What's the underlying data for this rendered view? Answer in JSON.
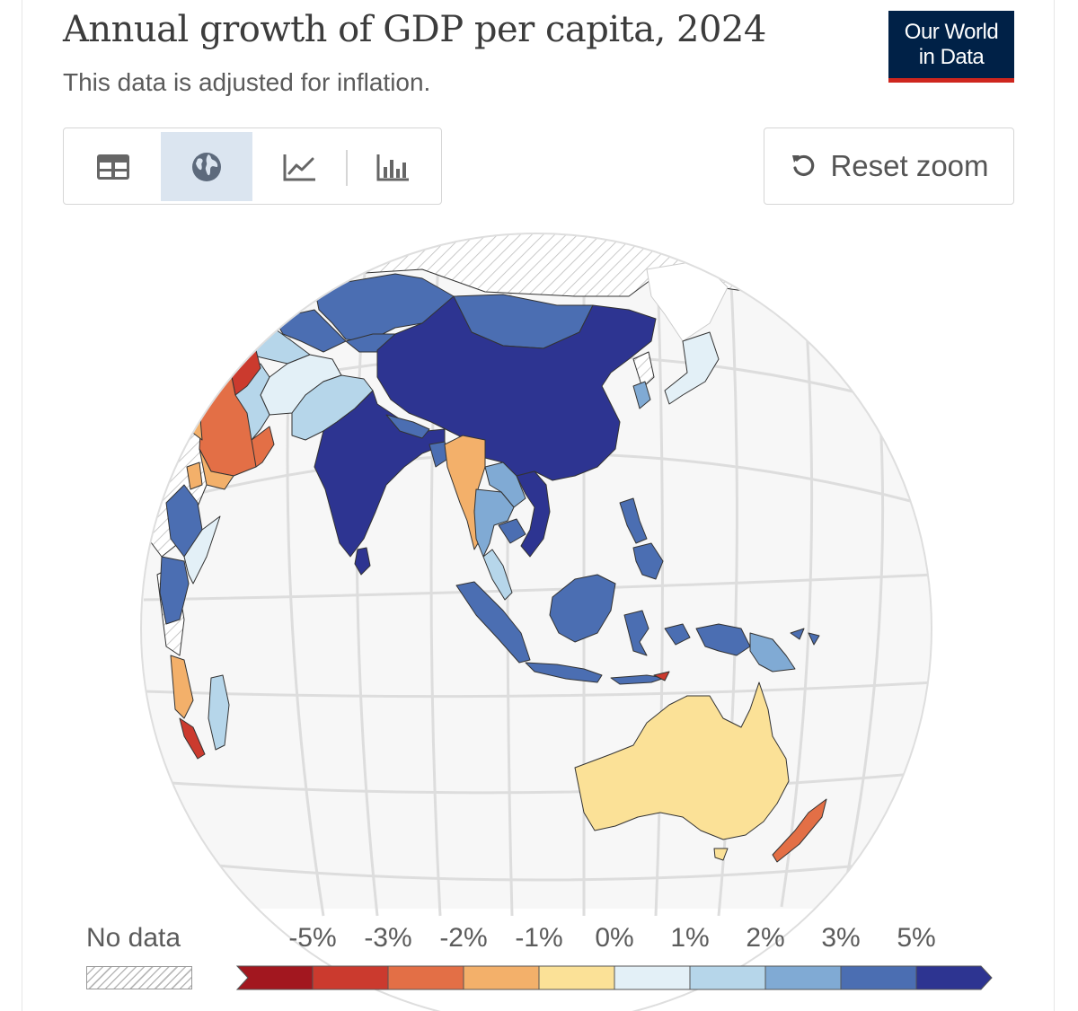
{
  "header": {
    "title": "Annual growth of GDP per capita, 2024",
    "subtitle": "This data is adjusted for inflation.",
    "logo_line1": "Our World",
    "logo_line2": "in Data"
  },
  "tabs": [
    {
      "name": "table",
      "icon": "table-icon",
      "active": false
    },
    {
      "name": "map",
      "icon": "globe-icon",
      "active": true
    },
    {
      "name": "line-chart",
      "icon": "line-chart-icon",
      "active": false
    },
    {
      "name": "bar-chart",
      "icon": "bar-chart-icon",
      "active": false
    }
  ],
  "reset_zoom": {
    "label": "Reset zoom",
    "icon": "reset-icon"
  },
  "legend": {
    "no_data_label": "No data",
    "tick_labels": [
      "-5%",
      "-3%",
      "-2%",
      "-1%",
      "0%",
      "1%",
      "2%",
      "3%",
      "5%"
    ],
    "colors": [
      "#a2171f",
      "#cb3a2e",
      "#e36f46",
      "#f3b06a",
      "#fbe197",
      "#e3f0f7",
      "#b6d6ea",
      "#80aad4",
      "#4b6eb2",
      "#2d3491"
    ]
  },
  "colors": {
    "title": "#3c3c3c",
    "logo_bg": "#002147",
    "logo_accent": "#ce261e",
    "active_tab": "#dbe5f0",
    "no_data_hatch": "#b9b9b9",
    "ocean": "#f7f7f7",
    "graticule": "#dddddd"
  }
}
